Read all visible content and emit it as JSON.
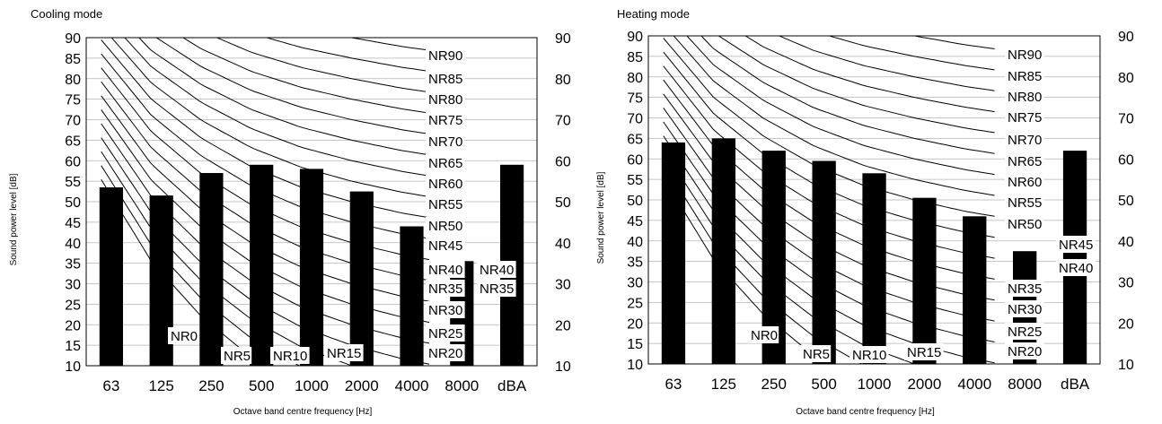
{
  "chart_data": [
    {
      "type": "bar",
      "title": "Cooling mode",
      "xlabel": "Octave band centre frequency [Hz]",
      "ylabel": "Sound power level [dB]",
      "categories": [
        "63",
        "125",
        "250",
        "500",
        "1000",
        "2000",
        "4000",
        "8000",
        "dBA"
      ],
      "values": [
        53.5,
        51.5,
        57,
        59,
        58,
        52.5,
        44,
        35.5,
        59
      ],
      "ylim": [
        10,
        90
      ],
      "yticks": [
        "10",
        "15",
        "20",
        "25",
        "30",
        "35",
        "40",
        "45",
        "50",
        "55",
        "60",
        "65",
        "70",
        "75",
        "80",
        "85",
        "90"
      ],
      "grid": true,
      "bar_color": "#000000",
      "nr_curves": {
        "labels": [
          "NR0",
          "NR5",
          "NR10",
          "NR15",
          "NR20",
          "NR25",
          "NR30",
          "NR35",
          "NR40",
          "NR45",
          "NR50",
          "NR55",
          "NR60",
          "NR65",
          "NR70",
          "NR75",
          "NR80",
          "NR85",
          "NR90"
        ],
        "levels": [
          0,
          5,
          10,
          15,
          20,
          25,
          30,
          35,
          40,
          45,
          50,
          55,
          60,
          65,
          70,
          75,
          80,
          85,
          90
        ]
      }
    },
    {
      "type": "bar",
      "title": "Heating mode",
      "xlabel": "Octave band centre frequency [Hz]",
      "ylabel": "Sound power level [dB]",
      "categories": [
        "63",
        "125",
        "250",
        "500",
        "1000",
        "2000",
        "4000",
        "8000",
        "dBA"
      ],
      "values": [
        64,
        65,
        62,
        59.5,
        56.5,
        50.5,
        46,
        37.5,
        62
      ],
      "ylim": [
        10,
        90
      ],
      "yticks": [
        "10",
        "15",
        "20",
        "25",
        "30",
        "35",
        "40",
        "45",
        "50",
        "55",
        "60",
        "65",
        "70",
        "75",
        "80",
        "85",
        "90"
      ],
      "grid": true,
      "bar_color": "#000000",
      "nr_curves": {
        "labels": [
          "NR0",
          "NR5",
          "NR10",
          "NR15",
          "NR20",
          "NR25",
          "NR30",
          "NR35",
          "NR40",
          "NR45",
          "NR50",
          "NR55",
          "NR60",
          "NR65",
          "NR70",
          "NR75",
          "NR80",
          "NR85",
          "NR90"
        ],
        "levels": [
          0,
          5,
          10,
          15,
          20,
          25,
          30,
          35,
          40,
          45,
          50,
          55,
          60,
          65,
          70,
          75,
          80,
          85,
          90
        ]
      }
    }
  ]
}
